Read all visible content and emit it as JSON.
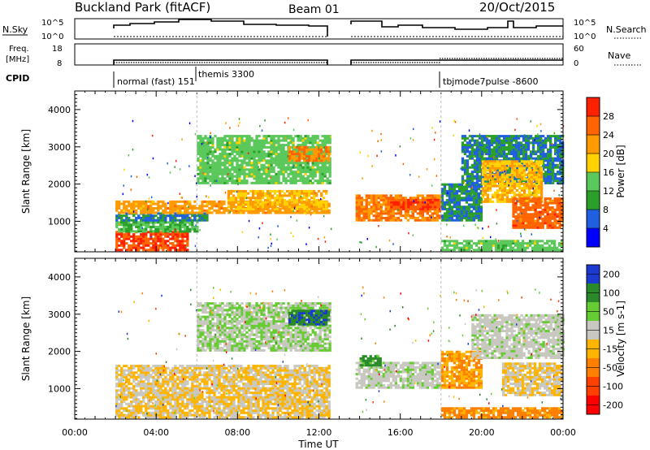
{
  "header": {
    "station": "Buckland Park (fitACF)",
    "beam": "Beam 01",
    "date": "20/Oct/2015"
  },
  "nsky_panel": {
    "label": "N.Sky",
    "tick_top": "10^5",
    "tick_bottom": "10^0",
    "right_tick_top": "10^5",
    "right_tick_bottom": "10^0",
    "right_label": "N.Search"
  },
  "freq_panel": {
    "label_line1": "Freq.",
    "label_line2": "[MHz]",
    "tick_top": "18",
    "tick_bottom": "8",
    "right_tick_top": "60",
    "right_tick_bottom": "0",
    "right_label": "Nave"
  },
  "cpid_panel": {
    "label": "CPID",
    "modes": [
      {
        "name": "normal (fast) 151",
        "start_hour": 2.0
      },
      {
        "name": "themis 3300",
        "start_hour": 6.0
      },
      {
        "name": "tbjmode7pulse -8600",
        "start_hour": 18.0
      }
    ]
  },
  "colors": {
    "power": [
      "#0000ff",
      "#2060e0",
      "#2aa02a",
      "#5ac85a",
      "#ffd200",
      "#ff9b00",
      "#ff6400",
      "#ff2000"
    ],
    "velocity": [
      "#1a3ad0",
      "#2a8a2a",
      "#66cc33",
      "#c8c8c0",
      "#ffb400",
      "#ff7f00",
      "#ff4000",
      "#ff0000"
    ]
  },
  "chart_data": [
    {
      "type": "heatmap",
      "title": "Power",
      "ylabel": "Slant Range [km]",
      "xlim": [
        0,
        24
      ],
      "ylim": [
        180,
        4500
      ],
      "yticks": [
        1000,
        2000,
        3000,
        4000
      ],
      "colorbar": {
        "label": "Power [dB]",
        "ticks": [
          "4",
          "8",
          "12",
          "16",
          "20",
          "24",
          "28"
        ],
        "range": [
          0,
          32
        ]
      },
      "regions": [
        {
          "t": [
            2.0,
            5.6
          ],
          "r": [
            200,
            700
          ],
          "value": 28
        },
        {
          "t": [
            2.0,
            6.0
          ],
          "r": [
            700,
            1000
          ],
          "value": 12
        },
        {
          "t": [
            2.0,
            6.5
          ],
          "r": [
            1000,
            1200
          ],
          "value": 8
        },
        {
          "t": [
            2.0,
            12.5
          ],
          "r": [
            1200,
            1550
          ],
          "value": 22
        },
        {
          "t": [
            7.5,
            12.4
          ],
          "r": [
            1300,
            1800
          ],
          "value": 20
        },
        {
          "t": [
            6.0,
            12.5
          ],
          "r": [
            2000,
            3300
          ],
          "value": 14
        },
        {
          "t": [
            10.5,
            12.5
          ],
          "r": [
            2600,
            3000
          ],
          "value": 24
        },
        {
          "t": [
            13.8,
            18.0
          ],
          "r": [
            1000,
            1700
          ],
          "value": 24
        },
        {
          "t": [
            15.5,
            18.0
          ],
          "r": [
            1300,
            1600
          ],
          "value": 28
        },
        {
          "t": [
            18.0,
            20.0
          ],
          "r": [
            1000,
            2000
          ],
          "value": 8
        },
        {
          "t": [
            19.0,
            24.0
          ],
          "r": [
            2000,
            3300
          ],
          "value": 8
        },
        {
          "t": [
            20.0,
            23.0
          ],
          "r": [
            1500,
            2600
          ],
          "value": 20
        },
        {
          "t": [
            21.5,
            24.0
          ],
          "r": [
            800,
            1600
          ],
          "value": 26
        },
        {
          "t": [
            18.0,
            24.0
          ],
          "r": [
            200,
            450
          ],
          "value": 14
        }
      ]
    },
    {
      "type": "heatmap",
      "title": "Velocity",
      "ylabel": "Slant Range [km]",
      "xlabel": "Time UT",
      "xlim": [
        0,
        24
      ],
      "ylim": [
        180,
        4500
      ],
      "xticks": [
        "00:00",
        "04:00",
        "08:00",
        "12:00",
        "16:00",
        "20:00",
        "00:00"
      ],
      "yticks": [
        1000,
        2000,
        3000,
        4000
      ],
      "colorbar": {
        "label": "Velocity [m s-1]",
        "ticks": [
          "200",
          "100",
          "50",
          "15",
          "-15",
          "-50",
          "-100",
          "-200"
        ],
        "range": [
          -250,
          250
        ]
      },
      "regions": [
        {
          "t": [
            2.0,
            12.5
          ],
          "r": [
            200,
            1600
          ],
          "value": 0
        },
        {
          "t": [
            6.0,
            12.5
          ],
          "r": [
            2000,
            3300
          ],
          "value": 60
        },
        {
          "t": [
            10.5,
            12.5
          ],
          "r": [
            2700,
            3100
          ],
          "value": 180
        },
        {
          "t": [
            13.8,
            18.0
          ],
          "r": [
            1000,
            1700
          ],
          "value": 40
        },
        {
          "t": [
            14.0,
            15.0
          ],
          "r": [
            1600,
            1900
          ],
          "value": 150
        },
        {
          "t": [
            18.0,
            20.0
          ],
          "r": [
            1000,
            2000
          ],
          "value": -60
        },
        {
          "t": [
            19.5,
            24.0
          ],
          "r": [
            1800,
            3000
          ],
          "value": 40
        },
        {
          "t": [
            21.0,
            24.0
          ],
          "r": [
            800,
            1700
          ],
          "value": 0
        },
        {
          "t": [
            18.0,
            24.0
          ],
          "r": [
            200,
            450
          ],
          "value": -80
        }
      ]
    }
  ]
}
